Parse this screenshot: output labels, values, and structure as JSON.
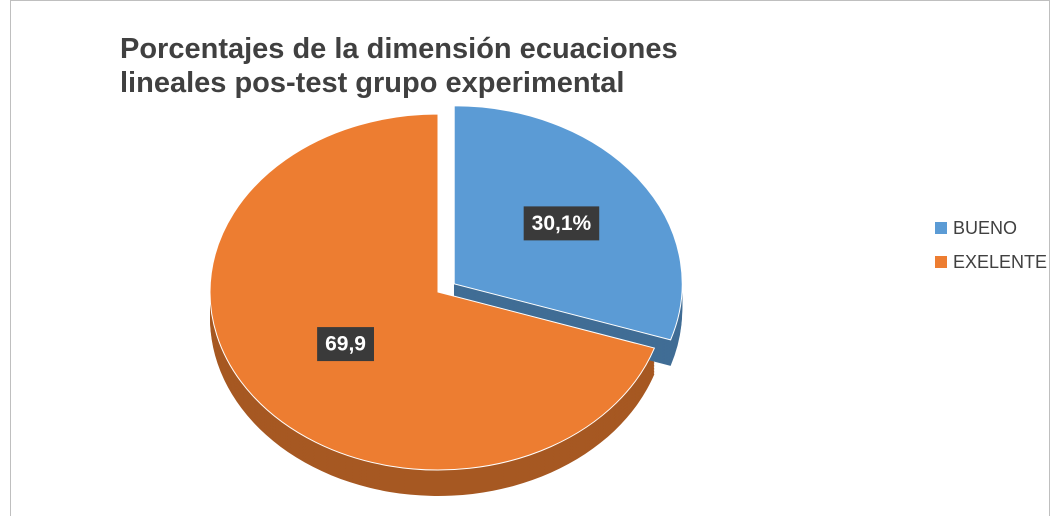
{
  "chart_data": {
    "type": "pie",
    "title": "Porcentajes de la dimensión ecuaciones lineales pos-test grupo experimental",
    "categories": [
      "BUENO",
      "EXELENTE"
    ],
    "values": [
      30.1,
      69.9
    ],
    "value_labels": [
      "30,1%",
      "69,9"
    ],
    "colors": [
      "#5b9bd5",
      "#ed7d31"
    ],
    "legend": "right"
  }
}
